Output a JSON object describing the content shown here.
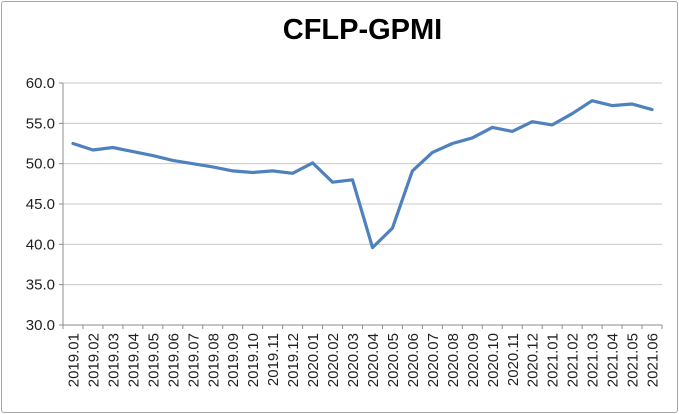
{
  "chart_data": {
    "type": "line",
    "title": "CFLP-GPMI",
    "xlabel": "",
    "ylabel": "",
    "ylim": [
      30,
      60
    ],
    "grid": "horizontal",
    "legend": "none",
    "x_label_rotation": -90,
    "yticks": [
      {
        "value": 60,
        "label": "60.0"
      },
      {
        "value": 55,
        "label": "55.0"
      },
      {
        "value": 50,
        "label": "50.0"
      },
      {
        "value": 45,
        "label": "45.0"
      },
      {
        "value": 40,
        "label": "40.0"
      },
      {
        "value": 35,
        "label": "35.0"
      },
      {
        "value": 30,
        "label": "30.0"
      }
    ],
    "categories": [
      "2019.01",
      "2019.02",
      "2019.03",
      "2019.04",
      "2019.05",
      "2019.06",
      "2019.07",
      "2019.08",
      "2019.09",
      "2019.10",
      "2019.11",
      "2019.12",
      "2020.01",
      "2020.02",
      "2020.03",
      "2020.04",
      "2020.05",
      "2020.06",
      "2020.07",
      "2020.08",
      "2020.09",
      "2020.10",
      "2020.11",
      "2020.12",
      "2021.01",
      "2021.02",
      "2021.03",
      "2021.04",
      "2021.05",
      "2021.06"
    ],
    "series": [
      {
        "name": "CFLP-GPMI",
        "color": "#4f81bd",
        "values": [
          52.5,
          51.7,
          52.0,
          51.5,
          51.0,
          50.4,
          50.0,
          49.6,
          49.1,
          48.9,
          49.1,
          48.8,
          50.1,
          47.7,
          48.0,
          39.6,
          42.0,
          49.1,
          51.4,
          52.5,
          53.2,
          54.5,
          54.0,
          55.2,
          54.8,
          56.2,
          57.8,
          57.2,
          57.4,
          56.7
        ]
      }
    ]
  },
  "style": {
    "line_color": "#4f81bd",
    "gridline_color": "#c9c9c9",
    "axis_color": "#8c8c8c",
    "tick_label_color": "#1f1f1f",
    "frame_border_color": "#a6a6a6",
    "background": "#ffffff"
  }
}
